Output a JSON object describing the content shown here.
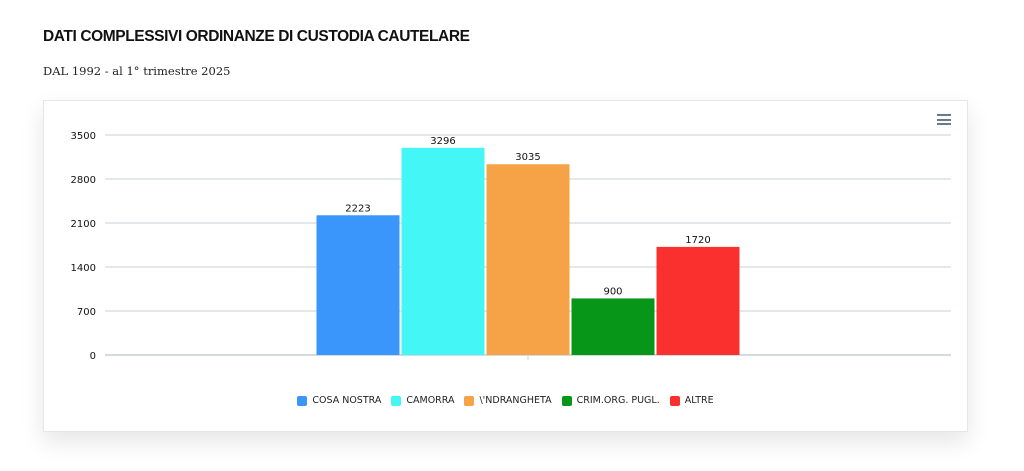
{
  "page": {
    "title": "DATI COMPLESSIVI ORDINANZE DI CUSTODIA CAUTELARE",
    "subtitle": "DAL 1992 - al 1° trimestre 2025"
  },
  "icons": {
    "menu": "hamburger-menu-icon"
  },
  "chart_data": {
    "type": "bar",
    "title": "",
    "xlabel": "",
    "ylabel": "",
    "ylim": [
      0,
      3500
    ],
    "yticks": [
      0,
      700,
      1400,
      2100,
      2800,
      3500
    ],
    "grid": true,
    "legend_position": "bottom",
    "categories": [
      ""
    ],
    "series": [
      {
        "name": "COSA NOSTRA",
        "values": [
          2223
        ],
        "color": "#3a96fb"
      },
      {
        "name": "CAMORRA",
        "values": [
          3296
        ],
        "color": "#45f6f7"
      },
      {
        "name": "\\'NDRANGHETA",
        "values": [
          3035
        ],
        "color": "#f6a347"
      },
      {
        "name": "CRIM.ORG. PUGL.",
        "values": [
          900
        ],
        "color": "#079617"
      },
      {
        "name": "ALTRE",
        "values": [
          1720
        ],
        "color": "#f9302e"
      }
    ]
  }
}
